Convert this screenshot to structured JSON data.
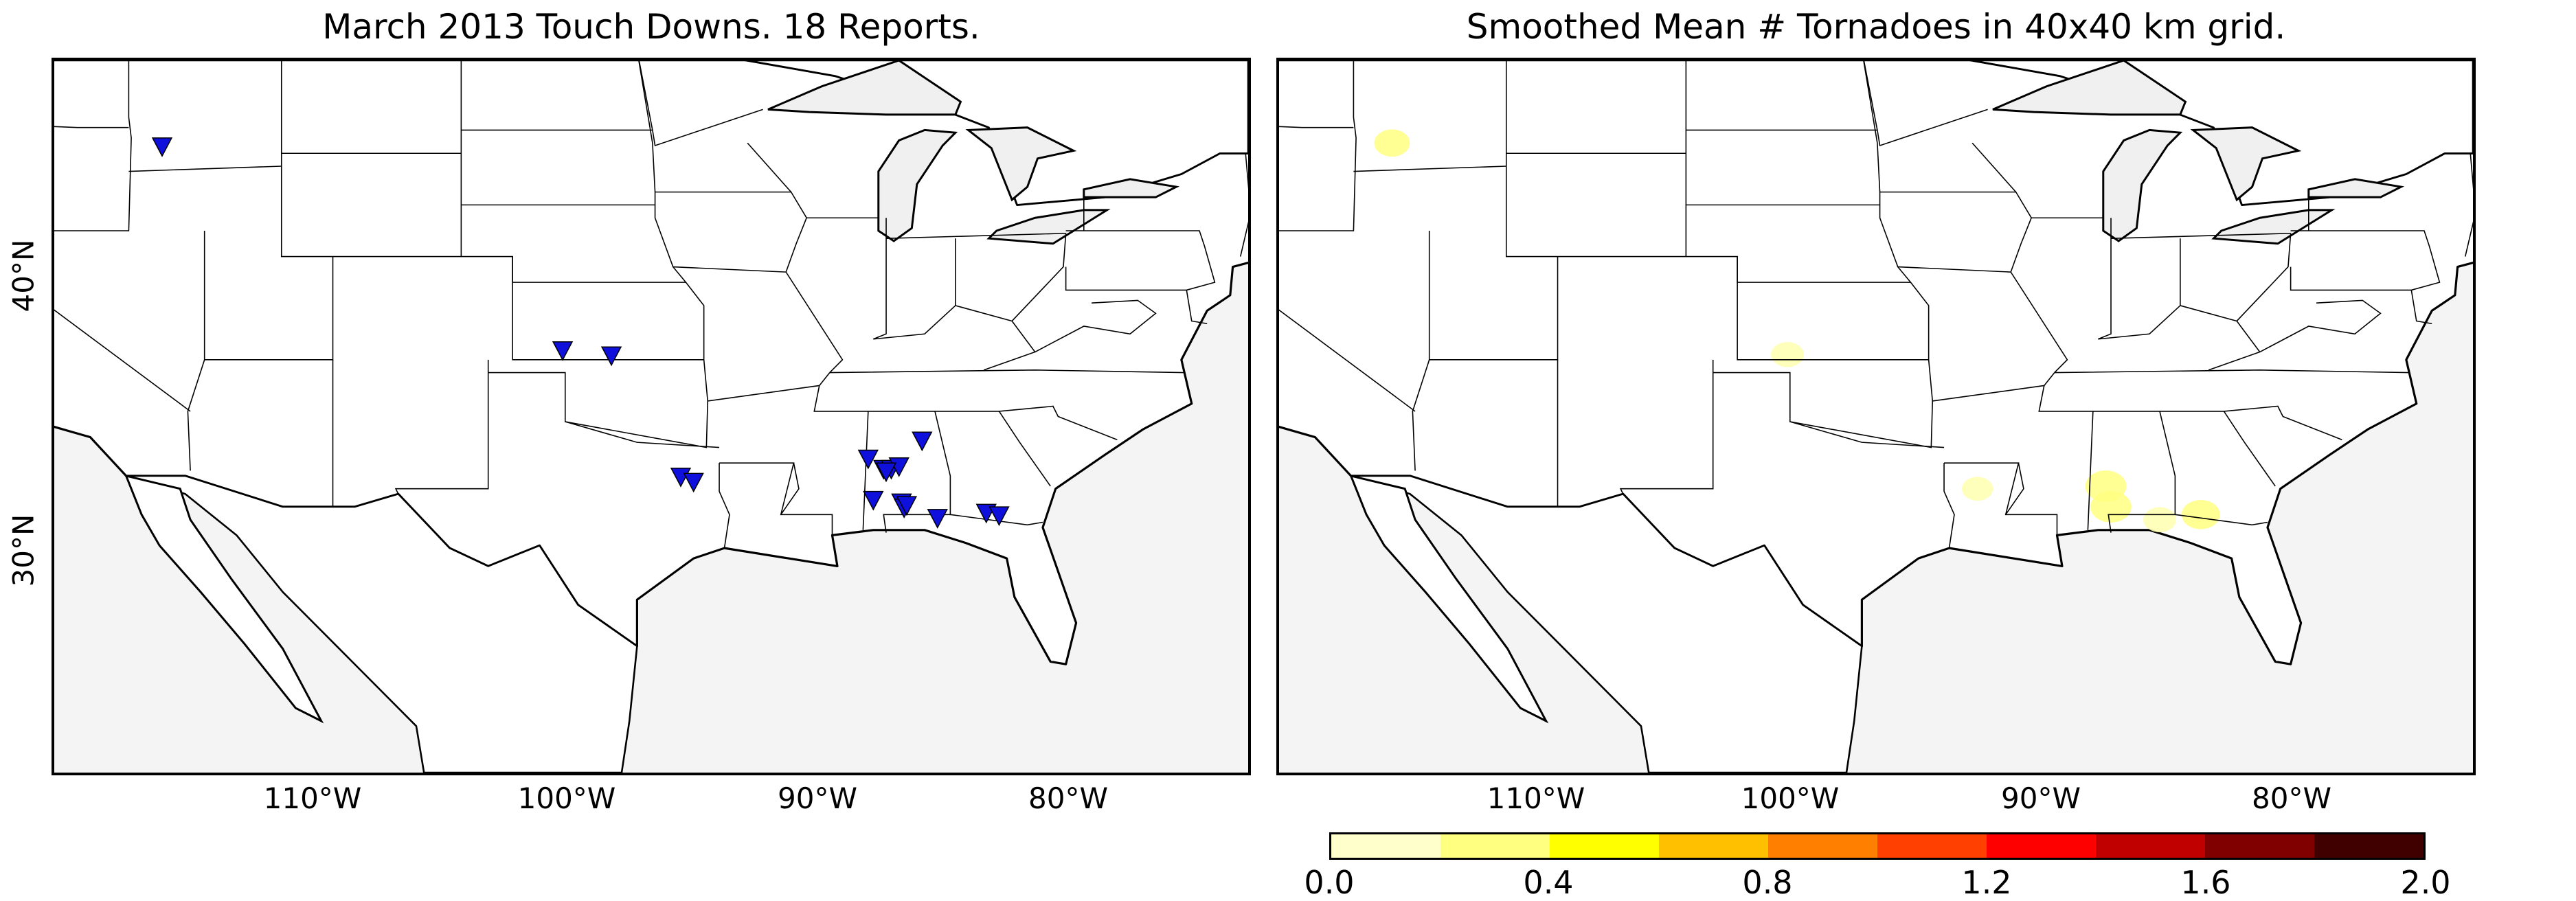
{
  "left_panel": {
    "title": "March 2013 Touch Downs. 18 Reports.",
    "marker_color": "#1010dd",
    "report_markers": [
      {
        "lon": -115.7,
        "lat": 45.3
      },
      {
        "lon": -100.1,
        "lat": 37.4
      },
      {
        "lon": -98.2,
        "lat": 37.2
      },
      {
        "lon": -95.5,
        "lat": 32.5
      },
      {
        "lon": -95.0,
        "lat": 32.3
      },
      {
        "lon": -88.2,
        "lat": 33.2
      },
      {
        "lon": -87.6,
        "lat": 32.8
      },
      {
        "lon": -87.3,
        "lat": 32.8
      },
      {
        "lon": -87.0,
        "lat": 32.9
      },
      {
        "lon": -88.0,
        "lat": 31.6
      },
      {
        "lon": -86.9,
        "lat": 31.5
      },
      {
        "lon": -86.8,
        "lat": 31.3
      },
      {
        "lon": -86.1,
        "lat": 33.9
      },
      {
        "lon": -85.5,
        "lat": 30.9
      },
      {
        "lon": -83.6,
        "lat": 31.1
      },
      {
        "lon": -83.1,
        "lat": 31.0
      },
      {
        "lon": -87.5,
        "lat": 32.7
      },
      {
        "lon": -86.7,
        "lat": 31.4
      }
    ]
  },
  "right_panel": {
    "title": "Smoothed Mean # Tornadoes in 40x40 km grid.",
    "smoothed_patches": [
      {
        "lon": -115.5,
        "lat": 45.4,
        "value": 0.2
      },
      {
        "lon": -100.1,
        "lat": 37.2,
        "value": 0.15
      },
      {
        "lon": -92.7,
        "lat": 32.0,
        "value": 0.12
      },
      {
        "lon": -87.7,
        "lat": 32.1,
        "value": 0.3
      },
      {
        "lon": -87.5,
        "lat": 31.3,
        "value": 0.3
      },
      {
        "lon": -85.6,
        "lat": 30.8,
        "value": 0.15
      },
      {
        "lon": -84.0,
        "lat": 31.0,
        "value": 0.25
      }
    ]
  },
  "axes": {
    "y_ticks": [
      "40°N",
      "30°N"
    ],
    "x_ticks": [
      "110°W",
      "100°W",
      "90°W",
      "80°W"
    ]
  },
  "colorbar": {
    "tick_labels": [
      "0.0",
      "0.4",
      "0.8",
      "1.2",
      "1.6",
      "2.0"
    ],
    "colors": [
      "#ffffcc",
      "#ffff80",
      "#ffff00",
      "#ffc000",
      "#ff8000",
      "#ff4000",
      "#ff0000",
      "#c00000",
      "#800000",
      "#400000"
    ]
  }
}
